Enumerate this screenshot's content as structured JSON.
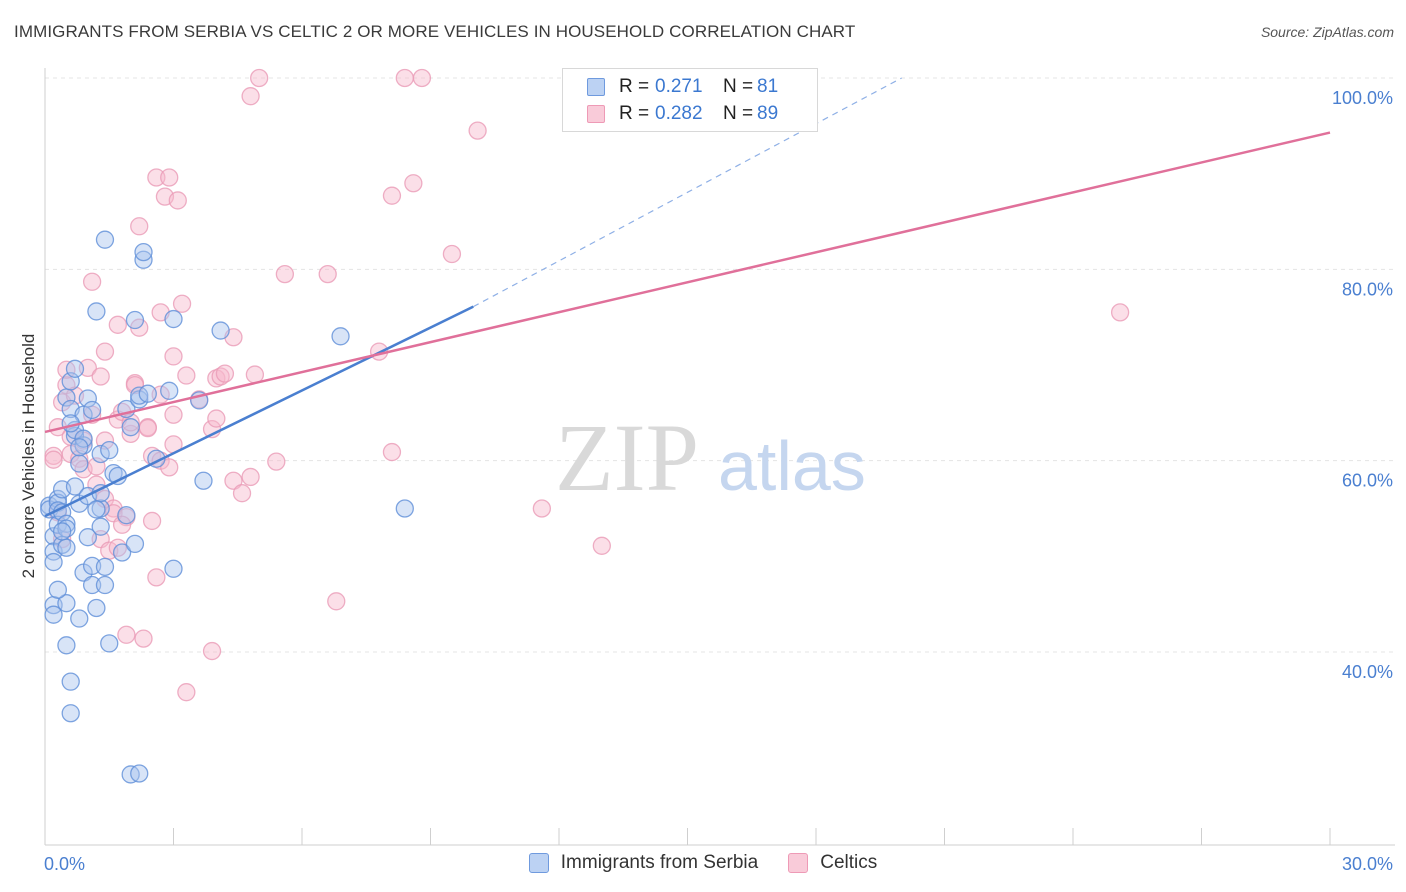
{
  "title": "IMMIGRANTS FROM SERBIA VS CELTIC 2 OR MORE VEHICLES IN HOUSEHOLD CORRELATION CHART",
  "source": "Source: ZipAtlas.com",
  "watermark": {
    "zip": "ZIP",
    "atlas": "atlas"
  },
  "legend": {
    "series1": {
      "r_label": "R =",
      "r_value": "0.271",
      "n_label": "N =",
      "n_value": "81"
    },
    "series2": {
      "r_label": "R =",
      "r_value": "0.282",
      "n_label": "N =",
      "n_value": "89"
    }
  },
  "colors": {
    "blue": "#4a7fd0",
    "blue_fill": "#a9c4ee",
    "pink": "#e0709a",
    "pink_fill": "#f6b8cc"
  },
  "chart_data": {
    "type": "scatter",
    "title": "IMMIGRANTS FROM SERBIA VS CELTIC 2 OR MORE VEHICLES IN HOUSEHOLD CORRELATION CHART",
    "xlabel": "",
    "ylabel": "2 or more Vehicles in Household",
    "xlim": [
      0,
      30
    ],
    "ylim": [
      20,
      102
    ],
    "x_tick_labels": [
      {
        "value": 0,
        "label": "0.0%"
      },
      {
        "value": 30,
        "label": "30.0%"
      }
    ],
    "y_tick_labels": [
      {
        "value": 40,
        "label": "40.0%"
      },
      {
        "value": 60,
        "label": "60.0%"
      },
      {
        "value": 80,
        "label": "80.0%"
      },
      {
        "value": 100,
        "label": "100.0%"
      }
    ],
    "series": [
      {
        "name": "Immigrants from Serbia",
        "r": 0.271,
        "n": 81,
        "trend": {
          "x0": 0.0,
          "y0": 54.2,
          "x1": 10.0,
          "y1": 76.1,
          "dash_to_x": 20.0,
          "dash_to_y": 100.0
        },
        "points": [
          [
            0.1,
            55.3
          ],
          [
            0.1,
            54.9
          ],
          [
            0.2,
            52.1
          ],
          [
            0.2,
            50.5
          ],
          [
            0.2,
            44.9
          ],
          [
            0.2,
            43.9
          ],
          [
            0.2,
            49.4
          ],
          [
            0.3,
            56.0
          ],
          [
            0.3,
            55.6
          ],
          [
            0.3,
            54.8
          ],
          [
            0.3,
            53.3
          ],
          [
            0.4,
            51.2
          ],
          [
            0.4,
            57.0
          ],
          [
            0.4,
            54.6
          ],
          [
            0.5,
            53.4
          ],
          [
            0.5,
            52.9
          ],
          [
            0.5,
            50.9
          ],
          [
            0.5,
            45.1
          ],
          [
            0.5,
            40.7
          ],
          [
            0.6,
            36.9
          ],
          [
            0.6,
            33.6
          ],
          [
            0.5,
            66.6
          ],
          [
            0.6,
            65.4
          ],
          [
            0.6,
            68.3
          ],
          [
            0.7,
            69.6
          ],
          [
            0.7,
            62.6
          ],
          [
            0.7,
            63.2
          ],
          [
            0.7,
            57.3
          ],
          [
            0.8,
            43.5
          ],
          [
            0.8,
            59.7
          ],
          [
            0.8,
            55.5
          ],
          [
            0.9,
            61.6
          ],
          [
            0.9,
            62.3
          ],
          [
            0.9,
            64.8
          ],
          [
            0.9,
            48.3
          ],
          [
            1.0,
            66.5
          ],
          [
            1.0,
            56.3
          ],
          [
            1.0,
            52.0
          ],
          [
            1.1,
            65.3
          ],
          [
            1.1,
            49.0
          ],
          [
            1.1,
            47.0
          ],
          [
            1.2,
            75.6
          ],
          [
            1.2,
            44.6
          ],
          [
            1.3,
            60.7
          ],
          [
            1.3,
            55.0
          ],
          [
            1.3,
            53.1
          ],
          [
            1.3,
            56.6
          ],
          [
            1.4,
            83.1
          ],
          [
            1.4,
            48.9
          ],
          [
            1.4,
            47.0
          ],
          [
            1.5,
            40.9
          ],
          [
            1.6,
            58.7
          ],
          [
            1.7,
            58.4
          ],
          [
            1.8,
            50.4
          ],
          [
            1.9,
            65.4
          ],
          [
            2.0,
            63.5
          ],
          [
            1.9,
            54.3
          ],
          [
            2.0,
            27.2
          ],
          [
            2.1,
            74.7
          ],
          [
            2.1,
            51.3
          ],
          [
            2.2,
            27.3
          ],
          [
            2.2,
            66.4
          ],
          [
            2.2,
            66.8
          ],
          [
            2.3,
            81.0
          ],
          [
            2.3,
            81.8
          ],
          [
            2.4,
            67.0
          ],
          [
            2.9,
            67.3
          ],
          [
            3.0,
            74.8
          ],
          [
            3.0,
            48.7
          ],
          [
            3.6,
            66.3
          ],
          [
            3.7,
            57.9
          ],
          [
            4.1,
            73.6
          ],
          [
            6.9,
            73.0
          ],
          [
            8.4,
            55.0
          ],
          [
            1.2,
            54.9
          ],
          [
            0.3,
            46.5
          ],
          [
            0.8,
            61.4
          ],
          [
            0.4,
            52.6
          ],
          [
            1.5,
            61.1
          ],
          [
            0.6,
            63.9
          ],
          [
            2.6,
            60.2
          ]
        ]
      },
      {
        "name": "Celtics",
        "r": 0.282,
        "n": 89,
        "trend": {
          "x0": 0.0,
          "y0": 63.0,
          "x1": 30.0,
          "y1": 94.3
        },
        "points": [
          [
            0.2,
            60.5
          ],
          [
            0.2,
            60.1
          ],
          [
            0.3,
            63.5
          ],
          [
            0.3,
            54.6
          ],
          [
            0.4,
            66.1
          ],
          [
            0.4,
            51.8
          ],
          [
            0.5,
            67.9
          ],
          [
            0.5,
            69.5
          ],
          [
            0.6,
            62.5
          ],
          [
            0.6,
            60.7
          ],
          [
            0.7,
            66.8
          ],
          [
            0.8,
            60.2
          ],
          [
            0.9,
            59.1
          ],
          [
            0.9,
            62.1
          ],
          [
            1.0,
            69.7
          ],
          [
            1.1,
            64.8
          ],
          [
            1.1,
            78.7
          ],
          [
            1.2,
            57.5
          ],
          [
            1.2,
            59.4
          ],
          [
            1.3,
            68.8
          ],
          [
            1.3,
            51.8
          ],
          [
            1.4,
            62.1
          ],
          [
            1.4,
            56.0
          ],
          [
            1.4,
            71.4
          ],
          [
            1.5,
            50.6
          ],
          [
            1.6,
            55.0
          ],
          [
            1.6,
            54.5
          ],
          [
            1.7,
            74.2
          ],
          [
            1.7,
            64.3
          ],
          [
            1.7,
            50.9
          ],
          [
            1.8,
            65.1
          ],
          [
            1.9,
            54.1
          ],
          [
            1.9,
            41.8
          ],
          [
            2.0,
            62.8
          ],
          [
            2.0,
            64.0
          ],
          [
            2.1,
            68.1
          ],
          [
            2.1,
            67.9
          ],
          [
            2.2,
            73.9
          ],
          [
            2.2,
            84.5
          ],
          [
            2.3,
            41.4
          ],
          [
            2.4,
            63.5
          ],
          [
            2.4,
            63.4
          ],
          [
            2.5,
            60.5
          ],
          [
            2.5,
            53.7
          ],
          [
            2.6,
            47.8
          ],
          [
            2.6,
            89.6
          ],
          [
            2.7,
            60.0
          ],
          [
            2.7,
            66.9
          ],
          [
            2.7,
            75.5
          ],
          [
            2.8,
            87.6
          ],
          [
            2.9,
            89.6
          ],
          [
            2.9,
            59.3
          ],
          [
            3.0,
            61.7
          ],
          [
            3.0,
            64.8
          ],
          [
            3.0,
            70.9
          ],
          [
            3.1,
            87.2
          ],
          [
            3.2,
            76.4
          ],
          [
            3.3,
            35.8
          ],
          [
            3.3,
            68.9
          ],
          [
            3.6,
            66.4
          ],
          [
            3.9,
            40.1
          ],
          [
            3.9,
            63.3
          ],
          [
            4.0,
            64.4
          ],
          [
            4.0,
            68.6
          ],
          [
            4.1,
            68.8
          ],
          [
            4.2,
            69.1
          ],
          [
            4.4,
            57.9
          ],
          [
            4.4,
            72.9
          ],
          [
            4.6,
            56.6
          ],
          [
            4.8,
            58.3
          ],
          [
            4.8,
            98.1
          ],
          [
            4.9,
            69.0
          ],
          [
            5.0,
            100.0
          ],
          [
            5.4,
            59.9
          ],
          [
            5.6,
            79.5
          ],
          [
            6.6,
            79.5
          ],
          [
            6.8,
            45.3
          ],
          [
            7.8,
            71.4
          ],
          [
            8.1,
            60.9
          ],
          [
            8.1,
            87.7
          ],
          [
            8.4,
            100.0
          ],
          [
            8.6,
            89.0
          ],
          [
            8.8,
            100.0
          ],
          [
            9.5,
            81.6
          ],
          [
            10.1,
            94.5
          ],
          [
            11.6,
            55.0
          ],
          [
            13.0,
            51.1
          ],
          [
            25.1,
            75.5
          ],
          [
            1.8,
            53.3
          ]
        ]
      }
    ]
  }
}
